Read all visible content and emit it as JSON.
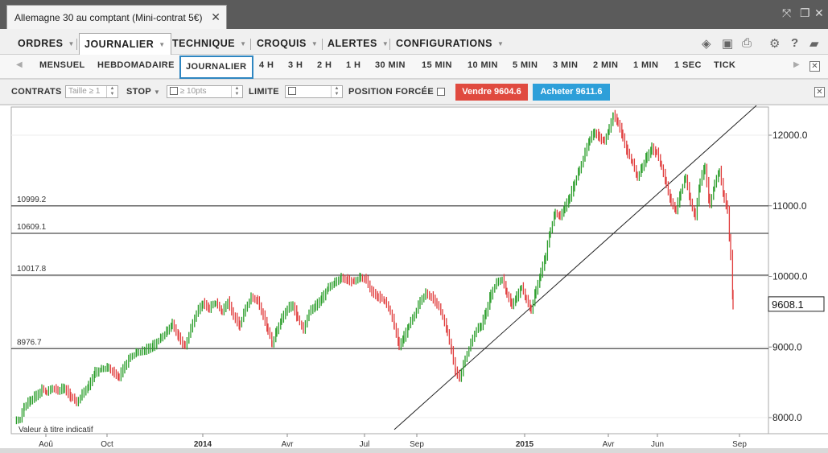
{
  "window": {
    "tab_title": "Allemagne 30 au comptant (Mini-contrat 5€)",
    "close": "✕"
  },
  "menu": {
    "items": [
      {
        "label": "ORDRES",
        "x": 22
      },
      {
        "label": "JOURNALIER",
        "x": 99,
        "active": true
      },
      {
        "label": "TECHNIQUE",
        "x": 214
      },
      {
        "label": "CROQUIS",
        "x": 319
      },
      {
        "label": "ALERTES",
        "x": 407
      },
      {
        "label": "CONFIGURATIONS",
        "x": 492
      }
    ]
  },
  "timeframes": [
    "MENSUEL",
    "HEBDOMADAIRE",
    "JOURNALIER",
    "4 H",
    "3 H",
    "2 H",
    "1 H",
    "30 MIN",
    "15 MIN",
    "10 MIN",
    "5 MIN",
    "3 MIN",
    "2 MIN",
    "1 MIN",
    "1 SEC",
    "TICK"
  ],
  "timeframe_active": "JOURNALIER",
  "order": {
    "contracts_label": "CONTRATS",
    "contracts_placeholder": "Taille ≥ 1",
    "stop_label": "STOP",
    "stop_placeholder": "≥ 10pts",
    "limit_label": "LIMITE",
    "forced_label": "POSITION FORCÉE",
    "sell_label": "Vendre 9604.6",
    "buy_label": "Acheter 9611.6"
  },
  "chart_data": {
    "type": "bar",
    "note": "Valeur à titre indicatif",
    "ylim": [
      7850,
      12400
    ],
    "y_ticks": [
      "12000.0",
      "11000.0",
      "10000.0",
      "9000.0",
      "8000.0"
    ],
    "y_tick_values": [
      12000,
      11000,
      10000,
      9000,
      8000
    ],
    "x_ticks": [
      "Aoû",
      "Oct",
      "2014",
      "Avr",
      "Jul",
      "Sep",
      "2015",
      "Avr",
      "Jun",
      "Sep"
    ],
    "x_tick_pos": [
      57,
      133,
      252,
      357,
      453,
      518,
      652,
      756,
      817,
      919
    ],
    "horizontal_lines": [
      {
        "label": "10999.2",
        "value": 10999.2
      },
      {
        "label": "10609.1",
        "value": 10609.1
      },
      {
        "label": "10017.8",
        "value": 10017.8
      },
      {
        "label": "8976.7",
        "value": 8976.7
      }
    ],
    "last_price": "9608.1",
    "last_price_value": 9608.1,
    "trendline": [
      [
        490,
        7830
      ],
      [
        940,
        12420
      ]
    ],
    "price_path": [
      [
        18,
        7940
      ],
      [
        25,
        7970
      ],
      [
        30,
        8150
      ],
      [
        38,
        8250
      ],
      [
        45,
        8320
      ],
      [
        52,
        8400
      ],
      [
        58,
        8350
      ],
      [
        65,
        8420
      ],
      [
        72,
        8380
      ],
      [
        80,
        8420
      ],
      [
        88,
        8300
      ],
      [
        95,
        8200
      ],
      [
        102,
        8330
      ],
      [
        110,
        8450
      ],
      [
        118,
        8650
      ],
      [
        126,
        8680
      ],
      [
        135,
        8700
      ],
      [
        142,
        8620
      ],
      [
        148,
        8580
      ],
      [
        155,
        8750
      ],
      [
        162,
        8850
      ],
      [
        170,
        8920
      ],
      [
        180,
        8950
      ],
      [
        190,
        9020
      ],
      [
        200,
        9120
      ],
      [
        208,
        9230
      ],
      [
        214,
        9330
      ],
      [
        222,
        9150
      ],
      [
        230,
        9000
      ],
      [
        237,
        9250
      ],
      [
        244,
        9480
      ],
      [
        252,
        9620
      ],
      [
        260,
        9560
      ],
      [
        268,
        9620
      ],
      [
        276,
        9500
      ],
      [
        283,
        9640
      ],
      [
        290,
        9450
      ],
      [
        298,
        9310
      ],
      [
        305,
        9540
      ],
      [
        312,
        9700
      ],
      [
        320,
        9660
      ],
      [
        327,
        9450
      ],
      [
        333,
        9250
      ],
      [
        338,
        9030
      ],
      [
        344,
        9230
      ],
      [
        350,
        9400
      ],
      [
        357,
        9550
      ],
      [
        364,
        9600
      ],
      [
        370,
        9400
      ],
      [
        377,
        9230
      ],
      [
        384,
        9500
      ],
      [
        392,
        9580
      ],
      [
        400,
        9700
      ],
      [
        408,
        9830
      ],
      [
        416,
        9910
      ],
      [
        424,
        9980
      ],
      [
        432,
        9960
      ],
      [
        440,
        9920
      ],
      [
        448,
        9980
      ],
      [
        455,
        9950
      ],
      [
        462,
        9780
      ],
      [
        470,
        9720
      ],
      [
        478,
        9640
      ],
      [
        485,
        9500
      ],
      [
        490,
        9300
      ],
      [
        496,
        9020
      ],
      [
        502,
        9150
      ],
      [
        508,
        9300
      ],
      [
        515,
        9450
      ],
      [
        522,
        9650
      ],
      [
        529,
        9760
      ],
      [
        536,
        9720
      ],
      [
        543,
        9620
      ],
      [
        550,
        9420
      ],
      [
        556,
        9200
      ],
      [
        561,
        8950
      ],
      [
        566,
        8650
      ],
      [
        571,
        8580
      ],
      [
        578,
        8820
      ],
      [
        585,
        9050
      ],
      [
        592,
        9250
      ],
      [
        598,
        9300
      ],
      [
        604,
        9500
      ],
      [
        610,
        9750
      ],
      [
        617,
        9900
      ],
      [
        624,
        9960
      ],
      [
        630,
        9750
      ],
      [
        636,
        9600
      ],
      [
        642,
        9720
      ],
      [
        648,
        9850
      ],
      [
        654,
        9660
      ],
      [
        660,
        9520
      ],
      [
        666,
        9800
      ],
      [
        672,
        10050
      ],
      [
        678,
        10300
      ],
      [
        684,
        10650
      ],
      [
        690,
        10900
      ],
      [
        696,
        10850
      ],
      [
        702,
        10980
      ],
      [
        708,
        11130
      ],
      [
        714,
        11320
      ],
      [
        720,
        11500
      ],
      [
        727,
        11750
      ],
      [
        733,
        11950
      ],
      [
        739,
        12050
      ],
      [
        745,
        11980
      ],
      [
        751,
        11900
      ],
      [
        757,
        12080
      ],
      [
        762,
        12280
      ],
      [
        768,
        12180
      ],
      [
        774,
        11980
      ],
      [
        780,
        11750
      ],
      [
        786,
        11600
      ],
      [
        792,
        11400
      ],
      [
        798,
        11550
      ],
      [
        804,
        11700
      ],
      [
        810,
        11820
      ],
      [
        816,
        11750
      ],
      [
        822,
        11550
      ],
      [
        828,
        11300
      ],
      [
        834,
        11050
      ],
      [
        840,
        10950
      ],
      [
        846,
        11200
      ],
      [
        852,
        11400
      ],
      [
        858,
        11050
      ],
      [
        864,
        10850
      ],
      [
        870,
        11350
      ],
      [
        876,
        11560
      ],
      [
        882,
        11000
      ],
      [
        888,
        11300
      ],
      [
        894,
        11500
      ],
      [
        900,
        11100
      ],
      [
        904,
        10950
      ],
      [
        908,
        10300
      ],
      [
        911,
        9608
      ]
    ]
  }
}
